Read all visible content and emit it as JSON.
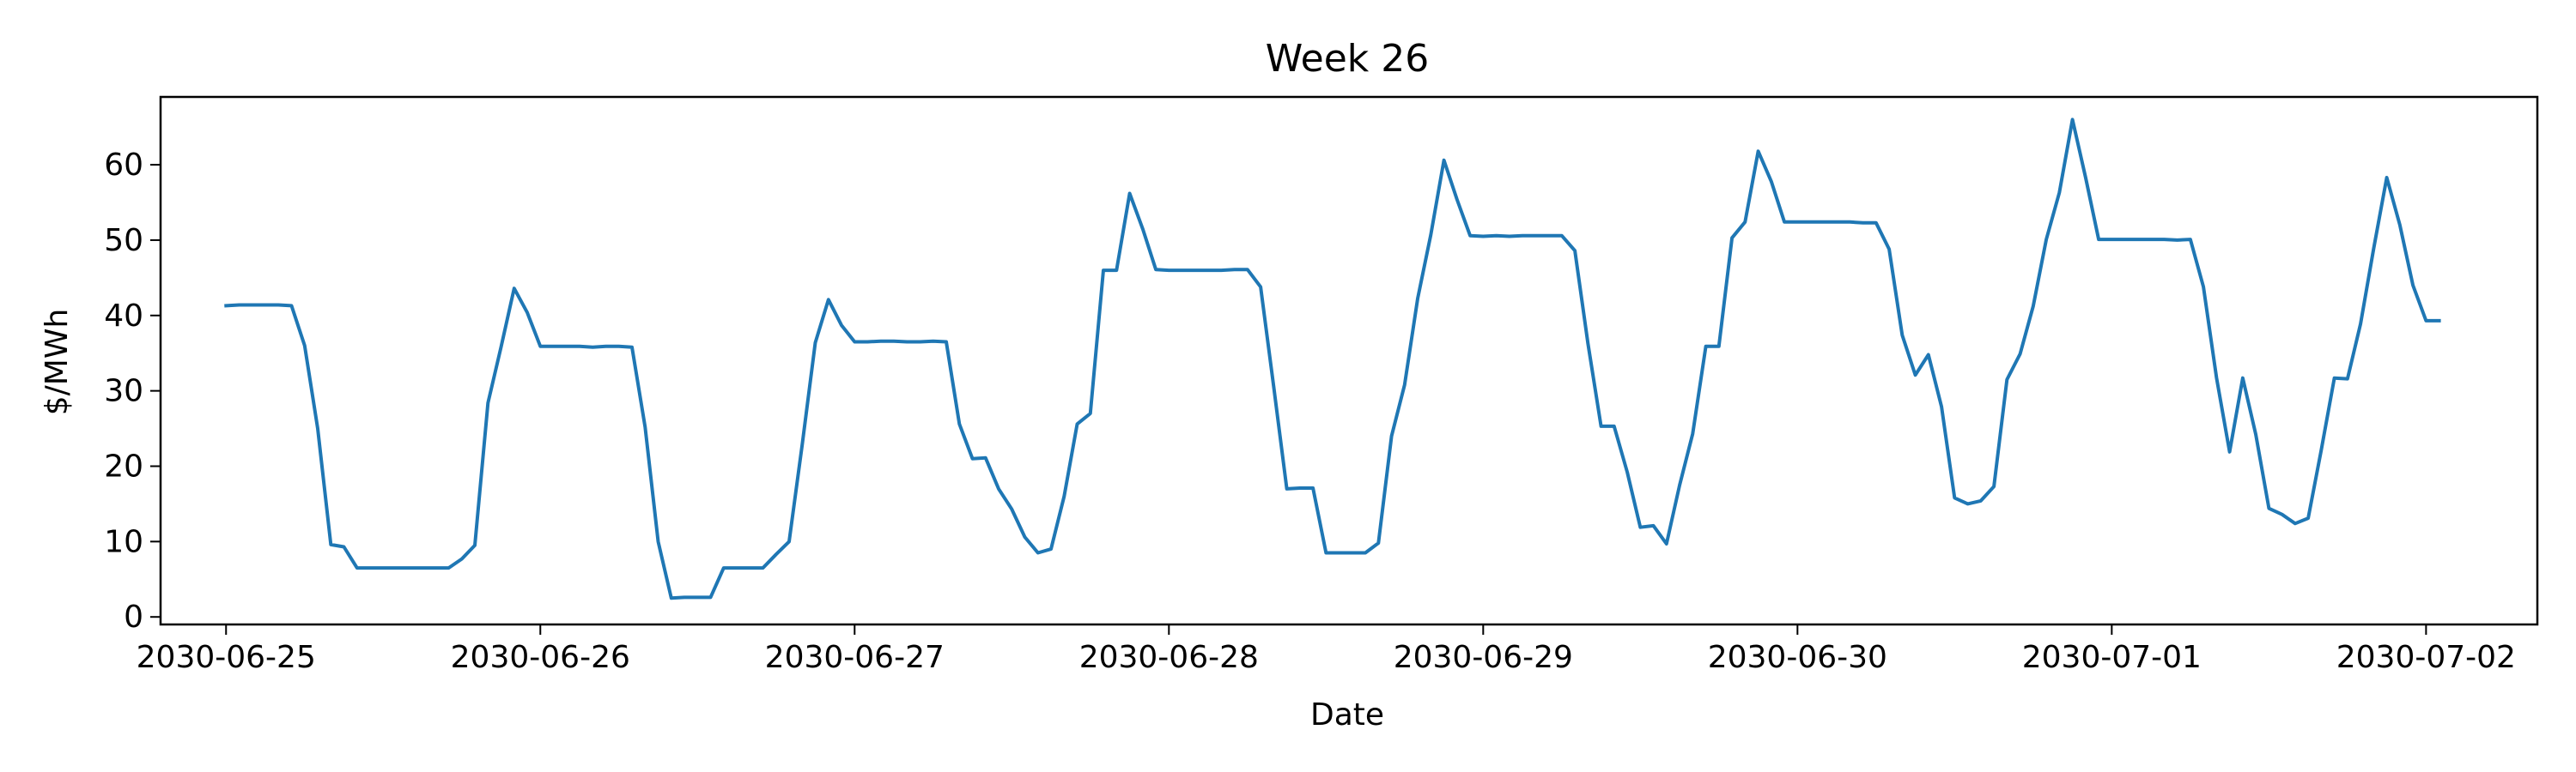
{
  "chart_data": {
    "type": "line",
    "title": "Week 26",
    "xlabel": "Date",
    "ylabel": "$/MWh",
    "x_ticks": [
      "2030-06-25",
      "2030-06-26",
      "2030-06-27",
      "2030-06-28",
      "2030-06-29",
      "2030-06-30",
      "2030-07-01",
      "2030-07-02"
    ],
    "y_ticks": [
      0,
      10,
      20,
      30,
      40,
      50,
      60
    ],
    "xlim": [
      "2030-06-24 19:00",
      "2030-07-02 08:30"
    ],
    "ylim": [
      -1,
      69
    ],
    "grid": false,
    "colors": {
      "line": "#1f77b4"
    },
    "series": [
      {
        "points": [
          [
            "2030-06-25 00:00",
            41.3
          ],
          [
            "2030-06-25 01:00",
            41.4
          ],
          [
            "2030-06-25 02:00",
            41.4
          ],
          [
            "2030-06-25 03:00",
            41.4
          ],
          [
            "2030-06-25 04:00",
            41.4
          ],
          [
            "2030-06-25 05:00",
            41.3
          ],
          [
            "2030-06-25 06:00",
            36.0
          ],
          [
            "2030-06-25 07:00",
            25.0
          ],
          [
            "2030-06-25 08:00",
            9.6
          ],
          [
            "2030-06-25 09:00",
            9.3
          ],
          [
            "2030-06-25 10:00",
            6.5
          ],
          [
            "2030-06-25 11:00",
            6.5
          ],
          [
            "2030-06-25 12:00",
            6.5
          ],
          [
            "2030-06-25 13:00",
            6.5
          ],
          [
            "2030-06-25 14:00",
            6.5
          ],
          [
            "2030-06-25 15:00",
            6.5
          ],
          [
            "2030-06-25 16:00",
            6.5
          ],
          [
            "2030-06-25 17:00",
            6.5
          ],
          [
            "2030-06-25 18:00",
            7.7
          ],
          [
            "2030-06-25 19:00",
            9.5
          ],
          [
            "2030-06-25 20:00",
            28.4
          ],
          [
            "2030-06-25 21:00",
            35.8
          ],
          [
            "2030-06-25 22:00",
            43.6
          ],
          [
            "2030-06-25 23:00",
            40.4
          ],
          [
            "2030-06-26 00:00",
            35.9
          ],
          [
            "2030-06-26 01:00",
            35.9
          ],
          [
            "2030-06-26 02:00",
            35.9
          ],
          [
            "2030-06-26 03:00",
            35.9
          ],
          [
            "2030-06-26 04:00",
            35.8
          ],
          [
            "2030-06-26 05:00",
            35.9
          ],
          [
            "2030-06-26 06:00",
            35.9
          ],
          [
            "2030-06-26 07:00",
            35.8
          ],
          [
            "2030-06-26 08:00",
            25.2
          ],
          [
            "2030-06-26 09:00",
            10.0
          ],
          [
            "2030-06-26 10:00",
            2.5
          ],
          [
            "2030-06-26 11:00",
            2.6
          ],
          [
            "2030-06-26 12:00",
            2.6
          ],
          [
            "2030-06-26 13:00",
            2.6
          ],
          [
            "2030-06-26 14:00",
            6.5
          ],
          [
            "2030-06-26 15:00",
            6.5
          ],
          [
            "2030-06-26 16:00",
            6.5
          ],
          [
            "2030-06-26 17:00",
            6.5
          ],
          [
            "2030-06-26 18:00",
            8.3
          ],
          [
            "2030-06-26 19:00",
            10.0
          ],
          [
            "2030-06-26 20:00",
            22.9
          ],
          [
            "2030-06-26 21:00",
            36.4
          ],
          [
            "2030-06-26 22:00",
            42.1
          ],
          [
            "2030-06-26 23:00",
            38.7
          ],
          [
            "2030-06-27 00:00",
            36.5
          ],
          [
            "2030-06-27 01:00",
            36.5
          ],
          [
            "2030-06-27 02:00",
            36.6
          ],
          [
            "2030-06-27 03:00",
            36.6
          ],
          [
            "2030-06-27 04:00",
            36.5
          ],
          [
            "2030-06-27 05:00",
            36.5
          ],
          [
            "2030-06-27 06:00",
            36.6
          ],
          [
            "2030-06-27 07:00",
            36.5
          ],
          [
            "2030-06-27 08:00",
            25.6
          ],
          [
            "2030-06-27 09:00",
            21.0
          ],
          [
            "2030-06-27 10:00",
            21.1
          ],
          [
            "2030-06-27 11:00",
            17.0
          ],
          [
            "2030-06-27 12:00",
            14.3
          ],
          [
            "2030-06-27 13:00",
            10.6
          ],
          [
            "2030-06-27 14:00",
            8.5
          ],
          [
            "2030-06-27 15:00",
            9.0
          ],
          [
            "2030-06-27 16:00",
            16.0
          ],
          [
            "2030-06-27 17:00",
            25.6
          ],
          [
            "2030-06-27 18:00",
            27.0
          ],
          [
            "2030-06-27 19:00",
            46.0
          ],
          [
            "2030-06-27 20:00",
            46.0
          ],
          [
            "2030-06-27 21:00",
            56.2
          ],
          [
            "2030-06-27 22:00",
            51.5
          ],
          [
            "2030-06-27 23:00",
            46.1
          ],
          [
            "2030-06-28 00:00",
            46.0
          ],
          [
            "2030-06-28 01:00",
            46.0
          ],
          [
            "2030-06-28 02:00",
            46.0
          ],
          [
            "2030-06-28 03:00",
            46.0
          ],
          [
            "2030-06-28 04:00",
            46.0
          ],
          [
            "2030-06-28 05:00",
            46.1
          ],
          [
            "2030-06-28 06:00",
            46.1
          ],
          [
            "2030-06-28 07:00",
            43.8
          ],
          [
            "2030-06-28 08:00",
            30.6
          ],
          [
            "2030-06-28 09:00",
            17.0
          ],
          [
            "2030-06-28 10:00",
            17.1
          ],
          [
            "2030-06-28 11:00",
            17.1
          ],
          [
            "2030-06-28 12:00",
            8.5
          ],
          [
            "2030-06-28 13:00",
            8.5
          ],
          [
            "2030-06-28 14:00",
            8.5
          ],
          [
            "2030-06-28 15:00",
            8.5
          ],
          [
            "2030-06-28 16:00",
            9.8
          ],
          [
            "2030-06-28 17:00",
            24.0
          ],
          [
            "2030-06-28 18:00",
            30.8
          ],
          [
            "2030-06-28 19:00",
            42.3
          ],
          [
            "2030-06-28 20:00",
            50.7
          ],
          [
            "2030-06-28 21:00",
            60.6
          ],
          [
            "2030-06-28 22:00",
            55.4
          ],
          [
            "2030-06-28 23:00",
            50.6
          ],
          [
            "2030-06-29 00:00",
            50.5
          ],
          [
            "2030-06-29 01:00",
            50.6
          ],
          [
            "2030-06-29 02:00",
            50.5
          ],
          [
            "2030-06-29 03:00",
            50.6
          ],
          [
            "2030-06-29 04:00",
            50.6
          ],
          [
            "2030-06-29 05:00",
            50.6
          ],
          [
            "2030-06-29 06:00",
            50.6
          ],
          [
            "2030-06-29 07:00",
            48.6
          ],
          [
            "2030-06-29 08:00",
            36.3
          ],
          [
            "2030-06-29 09:00",
            25.3
          ],
          [
            "2030-06-29 10:00",
            25.3
          ],
          [
            "2030-06-29 11:00",
            19.2
          ],
          [
            "2030-06-29 12:00",
            11.9
          ],
          [
            "2030-06-29 13:00",
            12.1
          ],
          [
            "2030-06-29 14:00",
            9.7
          ],
          [
            "2030-06-29 15:00",
            17.5
          ],
          [
            "2030-06-29 16:00",
            24.3
          ],
          [
            "2030-06-29 17:00",
            35.9
          ],
          [
            "2030-06-29 18:00",
            35.9
          ],
          [
            "2030-06-29 19:00",
            50.3
          ],
          [
            "2030-06-29 20:00",
            52.4
          ],
          [
            "2030-06-29 21:00",
            61.8
          ],
          [
            "2030-06-29 22:00",
            57.8
          ],
          [
            "2030-06-29 23:00",
            52.4
          ],
          [
            "2030-06-30 00:00",
            52.4
          ],
          [
            "2030-06-30 01:00",
            52.4
          ],
          [
            "2030-06-30 02:00",
            52.4
          ],
          [
            "2030-06-30 03:00",
            52.4
          ],
          [
            "2030-06-30 04:00",
            52.4
          ],
          [
            "2030-06-30 05:00",
            52.3
          ],
          [
            "2030-06-30 06:00",
            52.3
          ],
          [
            "2030-06-30 07:00",
            48.8
          ],
          [
            "2030-06-30 08:00",
            37.4
          ],
          [
            "2030-06-30 09:00",
            32.1
          ],
          [
            "2030-06-30 10:00",
            34.8
          ],
          [
            "2030-06-30 11:00",
            27.9
          ],
          [
            "2030-06-30 12:00",
            15.8
          ],
          [
            "2030-06-30 13:00",
            15.0
          ],
          [
            "2030-06-30 14:00",
            15.4
          ],
          [
            "2030-06-30 15:00",
            17.3
          ],
          [
            "2030-06-30 16:00",
            31.5
          ],
          [
            "2030-06-30 17:00",
            34.9
          ],
          [
            "2030-06-30 18:00",
            41.2
          ],
          [
            "2030-06-30 19:00",
            50.1
          ],
          [
            "2030-06-30 20:00",
            56.3
          ],
          [
            "2030-06-30 21:00",
            66.0
          ],
          [
            "2030-06-30 22:00",
            58.3
          ],
          [
            "2030-06-30 23:00",
            50.1
          ],
          [
            "2030-07-01 00:00",
            50.1
          ],
          [
            "2030-07-01 01:00",
            50.1
          ],
          [
            "2030-07-01 02:00",
            50.1
          ],
          [
            "2030-07-01 03:00",
            50.1
          ],
          [
            "2030-07-01 04:00",
            50.1
          ],
          [
            "2030-07-01 05:00",
            50.0
          ],
          [
            "2030-07-01 06:00",
            50.1
          ],
          [
            "2030-07-01 07:00",
            43.8
          ],
          [
            "2030-07-01 08:00",
            31.7
          ],
          [
            "2030-07-01 09:00",
            21.9
          ],
          [
            "2030-07-01 10:00",
            31.7
          ],
          [
            "2030-07-01 11:00",
            24.2
          ],
          [
            "2030-07-01 12:00",
            14.4
          ],
          [
            "2030-07-01 13:00",
            13.6
          ],
          [
            "2030-07-01 14:00",
            12.4
          ],
          [
            "2030-07-01 15:00",
            13.1
          ],
          [
            "2030-07-01 16:00",
            22.2
          ],
          [
            "2030-07-01 17:00",
            31.7
          ],
          [
            "2030-07-01 18:00",
            31.6
          ],
          [
            "2030-07-01 19:00",
            38.9
          ],
          [
            "2030-07-01 20:00",
            48.9
          ],
          [
            "2030-07-01 21:00",
            58.3
          ],
          [
            "2030-07-01 22:00",
            52.0
          ],
          [
            "2030-07-01 23:00",
            44.0
          ],
          [
            "2030-07-02 00:00",
            39.3
          ],
          [
            "2030-07-02 01:00",
            39.3
          ]
        ]
      }
    ]
  }
}
